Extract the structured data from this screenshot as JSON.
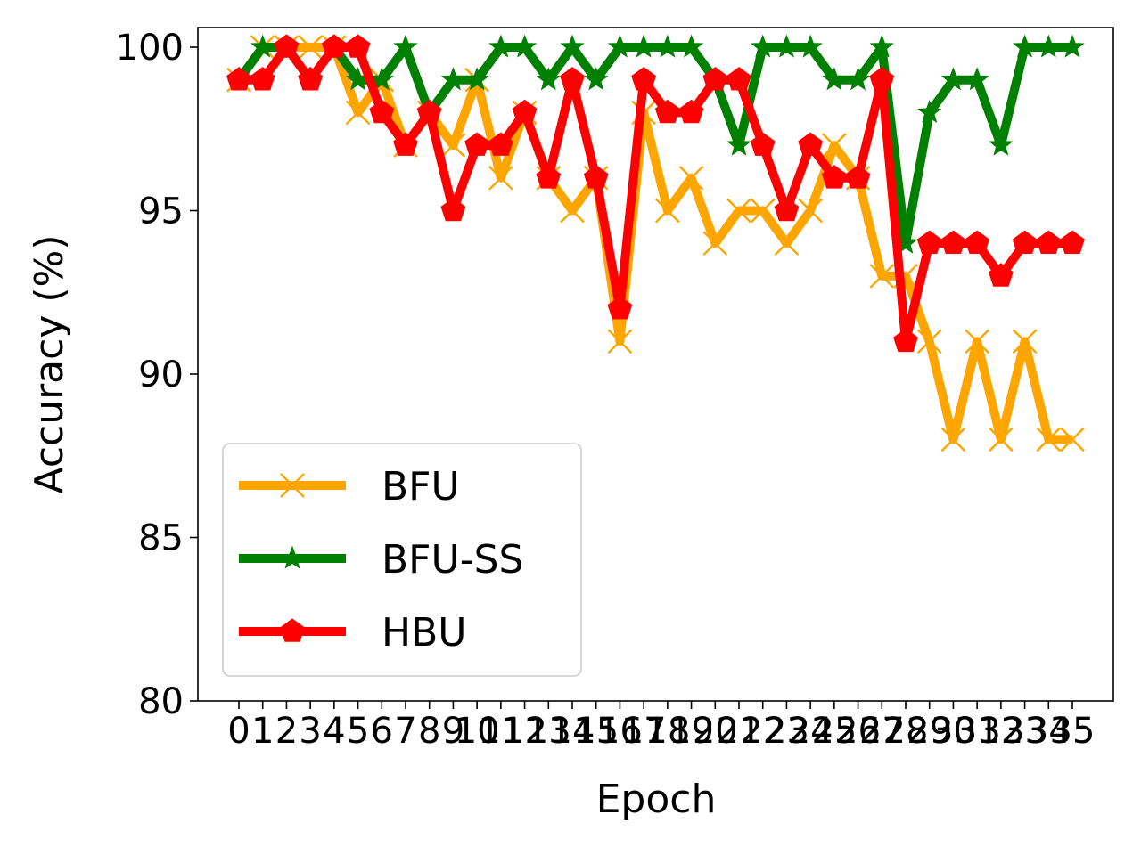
{
  "chart_data": {
    "type": "line",
    "title": "",
    "xlabel": "Epoch",
    "ylabel": "Accuracy (%)",
    "x": [
      0,
      1,
      2,
      3,
      4,
      5,
      6,
      7,
      8,
      9,
      10,
      11,
      12,
      13,
      14,
      15,
      16,
      17,
      18,
      19,
      20,
      21,
      22,
      23,
      24,
      25,
      26,
      27,
      28,
      29,
      30,
      31,
      32,
      33,
      34,
      35
    ],
    "xticks": [
      "0",
      "1",
      "2",
      "3",
      "4",
      "5",
      "6",
      "7",
      "8",
      "9",
      "10",
      "11",
      "12",
      "13",
      "14",
      "15",
      "16",
      "17",
      "18",
      "19",
      "20",
      "21",
      "22",
      "23",
      "24",
      "25",
      "26",
      "27",
      "28",
      "29",
      "30",
      "31",
      "32",
      "33",
      "34",
      "35"
    ],
    "ylim": [
      80,
      100.6
    ],
    "yticks": [
      80,
      85,
      90,
      95,
      100
    ],
    "grid": false,
    "legend_position": "lower-left",
    "series": [
      {
        "name": "BFU",
        "color": "#ffa500",
        "marker": "x",
        "values": [
          99,
          100,
          100,
          100,
          100,
          98,
          99,
          97,
          98,
          97,
          99,
          96,
          98,
          96,
          95,
          96,
          91,
          98,
          95,
          96,
          94,
          95,
          95,
          94,
          95,
          97,
          96,
          93,
          93,
          91,
          88,
          91,
          88,
          91,
          88,
          88
        ]
      },
      {
        "name": "BFU-SS",
        "color": "#008000",
        "marker": "star",
        "values": [
          99,
          100,
          100,
          99,
          100,
          99,
          99,
          100,
          98,
          99,
          99,
          100,
          100,
          99,
          100,
          99,
          100,
          100,
          100,
          100,
          99,
          97,
          100,
          100,
          100,
          99,
          99,
          100,
          94,
          98,
          99,
          99,
          97,
          100,
          100,
          100
        ]
      },
      {
        "name": "HBU",
        "color": "#ff0000",
        "marker": "pentagon",
        "values": [
          99,
          99,
          100,
          99,
          100,
          100,
          98,
          97,
          98,
          95,
          97,
          97,
          98,
          96,
          99,
          96,
          92,
          99,
          98,
          98,
          99,
          99,
          97,
          95,
          97,
          96,
          96,
          99,
          91,
          94,
          94,
          94,
          93,
          94,
          94,
          94
        ]
      }
    ]
  }
}
